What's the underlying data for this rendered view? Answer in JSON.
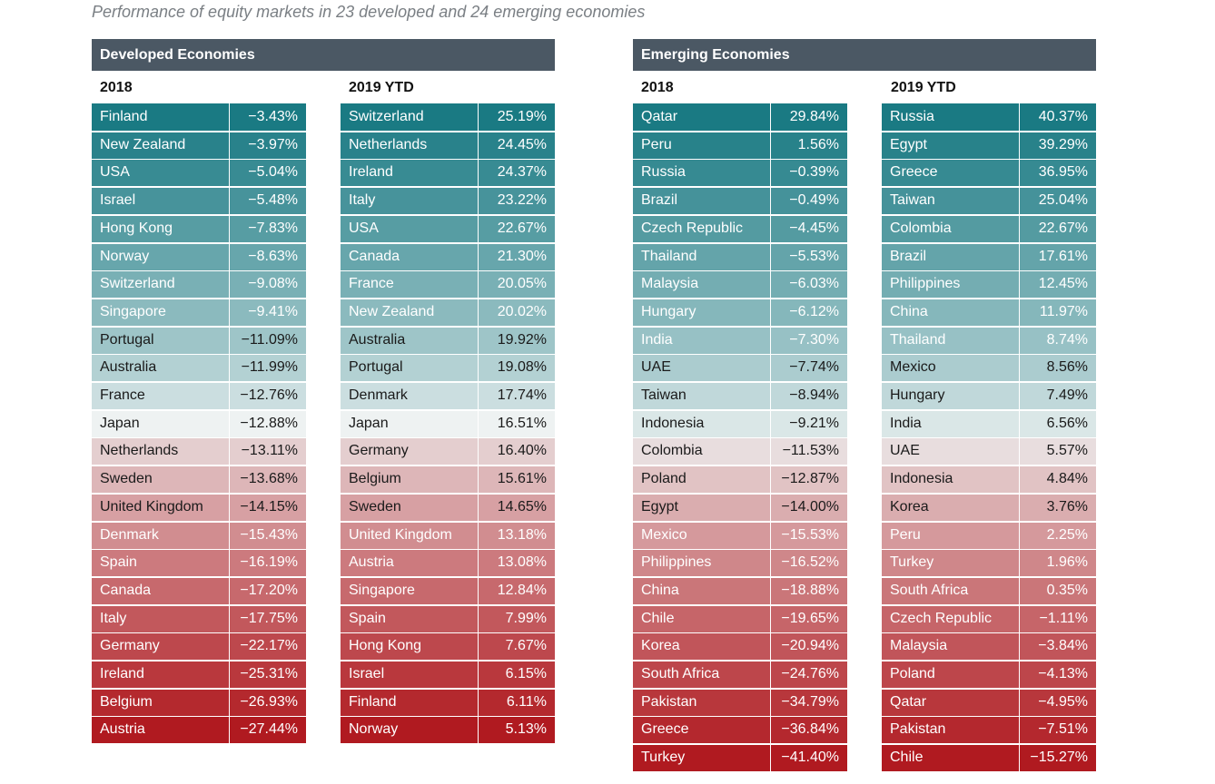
{
  "subtitle": "Performance of equity markets in 23 developed and 24 emerging economies",
  "colors": {
    "header_bg": "#4b5864",
    "pos_high": "#1a7a83",
    "neutral": "#eef2f2",
    "neg_high": "#b01a20"
  },
  "chart_data": {
    "type": "table",
    "panels": [
      {
        "title": "Developed Economies",
        "columns": [
          {
            "label": "2018",
            "rows": [
              {
                "country": "Finland",
                "value": "−3.43%",
                "num": -3.43
              },
              {
                "country": "New Zealand",
                "value": "−3.97%",
                "num": -3.97
              },
              {
                "country": "USA",
                "value": "−5.04%",
                "num": -5.04
              },
              {
                "country": "Israel",
                "value": "−5.48%",
                "num": -5.48
              },
              {
                "country": "Hong Kong",
                "value": "−7.83%",
                "num": -7.83
              },
              {
                "country": "Norway",
                "value": "−8.63%",
                "num": -8.63
              },
              {
                "country": "Switzerland",
                "value": "−9.08%",
                "num": -9.08
              },
              {
                "country": "Singapore",
                "value": "−9.41%",
                "num": -9.41
              },
              {
                "country": "Portugal",
                "value": "−11.09%",
                "num": -11.09
              },
              {
                "country": "Australia",
                "value": "−11.99%",
                "num": -11.99
              },
              {
                "country": "France",
                "value": "−12.76%",
                "num": -12.76
              },
              {
                "country": "Japan",
                "value": "−12.88%",
                "num": -12.88
              },
              {
                "country": "Netherlands",
                "value": "−13.11%",
                "num": -13.11
              },
              {
                "country": "Sweden",
                "value": "−13.68%",
                "num": -13.68
              },
              {
                "country": "United Kingdom",
                "value": "−14.15%",
                "num": -14.15
              },
              {
                "country": "Denmark",
                "value": "−15.43%",
                "num": -15.43
              },
              {
                "country": "Spain",
                "value": "−16.19%",
                "num": -16.19
              },
              {
                "country": "Canada",
                "value": "−17.20%",
                "num": -17.2
              },
              {
                "country": "Italy",
                "value": "−17.75%",
                "num": -17.75
              },
              {
                "country": "Germany",
                "value": "−22.17%",
                "num": -22.17
              },
              {
                "country": "Ireland",
                "value": "−25.31%",
                "num": -25.31
              },
              {
                "country": "Belgium",
                "value": "−26.93%",
                "num": -26.93
              },
              {
                "country": "Austria",
                "value": "−27.44%",
                "num": -27.44
              }
            ]
          },
          {
            "label": "2019 YTD",
            "rows": [
              {
                "country": "Switzerland",
                "value": "25.19%",
                "num": 25.19
              },
              {
                "country": "Netherlands",
                "value": "24.45%",
                "num": 24.45
              },
              {
                "country": "Ireland",
                "value": "24.37%",
                "num": 24.37
              },
              {
                "country": "Italy",
                "value": "23.22%",
                "num": 23.22
              },
              {
                "country": "USA",
                "value": "22.67%",
                "num": 22.67
              },
              {
                "country": "Canada",
                "value": "21.30%",
                "num": 21.3
              },
              {
                "country": "France",
                "value": "20.05%",
                "num": 20.05
              },
              {
                "country": "New Zealand",
                "value": "20.02%",
                "num": 20.02
              },
              {
                "country": "Australia",
                "value": "19.92%",
                "num": 19.92
              },
              {
                "country": "Portugal",
                "value": "19.08%",
                "num": 19.08
              },
              {
                "country": "Denmark",
                "value": "17.74%",
                "num": 17.74
              },
              {
                "country": "Japan",
                "value": "16.51%",
                "num": 16.51
              },
              {
                "country": "Germany",
                "value": "16.40%",
                "num": 16.4
              },
              {
                "country": "Belgium",
                "value": "15.61%",
                "num": 15.61
              },
              {
                "country": "Sweden",
                "value": "14.65%",
                "num": 14.65
              },
              {
                "country": "United Kingdom",
                "value": "13.18%",
                "num": 13.18
              },
              {
                "country": "Austria",
                "value": "13.08%",
                "num": 13.08
              },
              {
                "country": "Singapore",
                "value": "12.84%",
                "num": 12.84
              },
              {
                "country": "Spain",
                "value": "7.99%",
                "num": 7.99
              },
              {
                "country": "Hong Kong",
                "value": "7.67%",
                "num": 7.67
              },
              {
                "country": "Israel",
                "value": "6.15%",
                "num": 6.15
              },
              {
                "country": "Finland",
                "value": "6.11%",
                "num": 6.11
              },
              {
                "country": "Norway",
                "value": "5.13%",
                "num": 5.13
              }
            ]
          }
        ]
      },
      {
        "title": "Emerging Economies",
        "columns": [
          {
            "label": "2018",
            "rows": [
              {
                "country": "Qatar",
                "value": "29.84%",
                "num": 29.84
              },
              {
                "country": "Peru",
                "value": "1.56%",
                "num": 1.56
              },
              {
                "country": "Russia",
                "value": "−0.39%",
                "num": -0.39
              },
              {
                "country": "Brazil",
                "value": "−0.49%",
                "num": -0.49
              },
              {
                "country": "Czech Republic",
                "value": "−4.45%",
                "num": -4.45
              },
              {
                "country": "Thailand",
                "value": "−5.53%",
                "num": -5.53
              },
              {
                "country": "Malaysia",
                "value": "−6.03%",
                "num": -6.03
              },
              {
                "country": "Hungary",
                "value": "−6.12%",
                "num": -6.12
              },
              {
                "country": "India",
                "value": "−7.30%",
                "num": -7.3
              },
              {
                "country": "UAE",
                "value": "−7.74%",
                "num": -7.74
              },
              {
                "country": "Taiwan",
                "value": "−8.94%",
                "num": -8.94
              },
              {
                "country": "Indonesia",
                "value": "−9.21%",
                "num": -9.21
              },
              {
                "country": "Colombia",
                "value": "−11.53%",
                "num": -11.53
              },
              {
                "country": "Poland",
                "value": "−12.87%",
                "num": -12.87
              },
              {
                "country": "Egypt",
                "value": "−14.00%",
                "num": -14.0
              },
              {
                "country": "Mexico",
                "value": "−15.53%",
                "num": -15.53
              },
              {
                "country": "Philippines",
                "value": "−16.52%",
                "num": -16.52
              },
              {
                "country": "China",
                "value": "−18.88%",
                "num": -18.88
              },
              {
                "country": "Chile",
                "value": "−19.65%",
                "num": -19.65
              },
              {
                "country": "Korea",
                "value": "−20.94%",
                "num": -20.94
              },
              {
                "country": "South Africa",
                "value": "−24.76%",
                "num": -24.76
              },
              {
                "country": "Pakistan",
                "value": "−34.79%",
                "num": -34.79
              },
              {
                "country": "Greece",
                "value": "−36.84%",
                "num": -36.84
              },
              {
                "country": "Turkey",
                "value": "−41.40%",
                "num": -41.4
              }
            ]
          },
          {
            "label": "2019 YTD",
            "rows": [
              {
                "country": "Russia",
                "value": "40.37%",
                "num": 40.37
              },
              {
                "country": "Egypt",
                "value": "39.29%",
                "num": 39.29
              },
              {
                "country": "Greece",
                "value": "36.95%",
                "num": 36.95
              },
              {
                "country": "Taiwan",
                "value": "25.04%",
                "num": 25.04
              },
              {
                "country": "Colombia",
                "value": "22.67%",
                "num": 22.67
              },
              {
                "country": "Brazil",
                "value": "17.61%",
                "num": 17.61
              },
              {
                "country": "Philippines",
                "value": "12.45%",
                "num": 12.45
              },
              {
                "country": "China",
                "value": "11.97%",
                "num": 11.97
              },
              {
                "country": "Thailand",
                "value": "8.74%",
                "num": 8.74
              },
              {
                "country": "Mexico",
                "value": "8.56%",
                "num": 8.56
              },
              {
                "country": "Hungary",
                "value": "7.49%",
                "num": 7.49
              },
              {
                "country": "India",
                "value": "6.56%",
                "num": 6.56
              },
              {
                "country": "UAE",
                "value": "5.57%",
                "num": 5.57
              },
              {
                "country": "Indonesia",
                "value": "4.84%",
                "num": 4.84
              },
              {
                "country": "Korea",
                "value": "3.76%",
                "num": 3.76
              },
              {
                "country": "Peru",
                "value": "2.25%",
                "num": 2.25
              },
              {
                "country": "Turkey",
                "value": "1.96%",
                "num": 1.96
              },
              {
                "country": "South Africa",
                "value": "0.35%",
                "num": 0.35
              },
              {
                "country": "Czech Republic",
                "value": "−1.11%",
                "num": -1.11
              },
              {
                "country": "Malaysia",
                "value": "−3.84%",
                "num": -3.84
              },
              {
                "country": "Poland",
                "value": "−4.13%",
                "num": -4.13
              },
              {
                "country": "Qatar",
                "value": "−4.95%",
                "num": -4.95
              },
              {
                "country": "Pakistan",
                "value": "−7.51%",
                "num": -7.51
              },
              {
                "country": "Chile",
                "value": "−15.27%",
                "num": -15.27
              }
            ]
          }
        ]
      }
    ]
  }
}
